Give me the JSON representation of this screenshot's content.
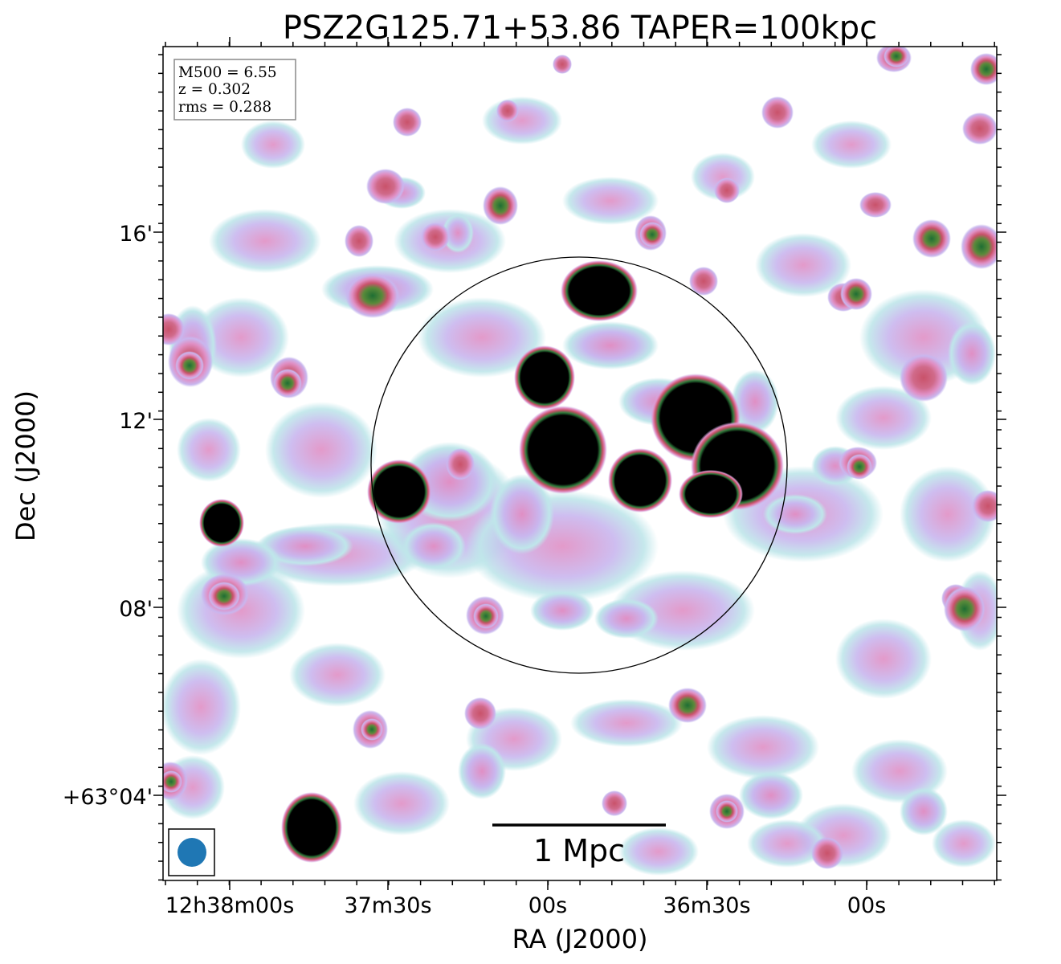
{
  "title": "PSZ2G125.71+53.86 TAPER=100kpc",
  "info_box": {
    "m500": "M500 = 6.55",
    "z": "z = 0.302",
    "rms": "rms = 0.288"
  },
  "scale_bar_label": "1 Mpc",
  "x_axis": {
    "label": "RA (J2000)",
    "ticks": [
      "12h38m00s",
      "37m30s",
      "00s",
      "36m30s",
      "00s"
    ]
  },
  "y_axis": {
    "label": "Dec (J2000)",
    "ticks": [
      "16'",
      "12'",
      "08'",
      "+63°04'"
    ]
  },
  "colors": {
    "faint": "#bfe6ea",
    "lavender": "#c9b6ee",
    "pink": "#e08fc4",
    "red": "#c9526a",
    "green": "#2d7a3a",
    "core": "#000000",
    "beam": "#1f77b4"
  },
  "icons": {
    "beam": "beam-ellipse-icon"
  }
}
